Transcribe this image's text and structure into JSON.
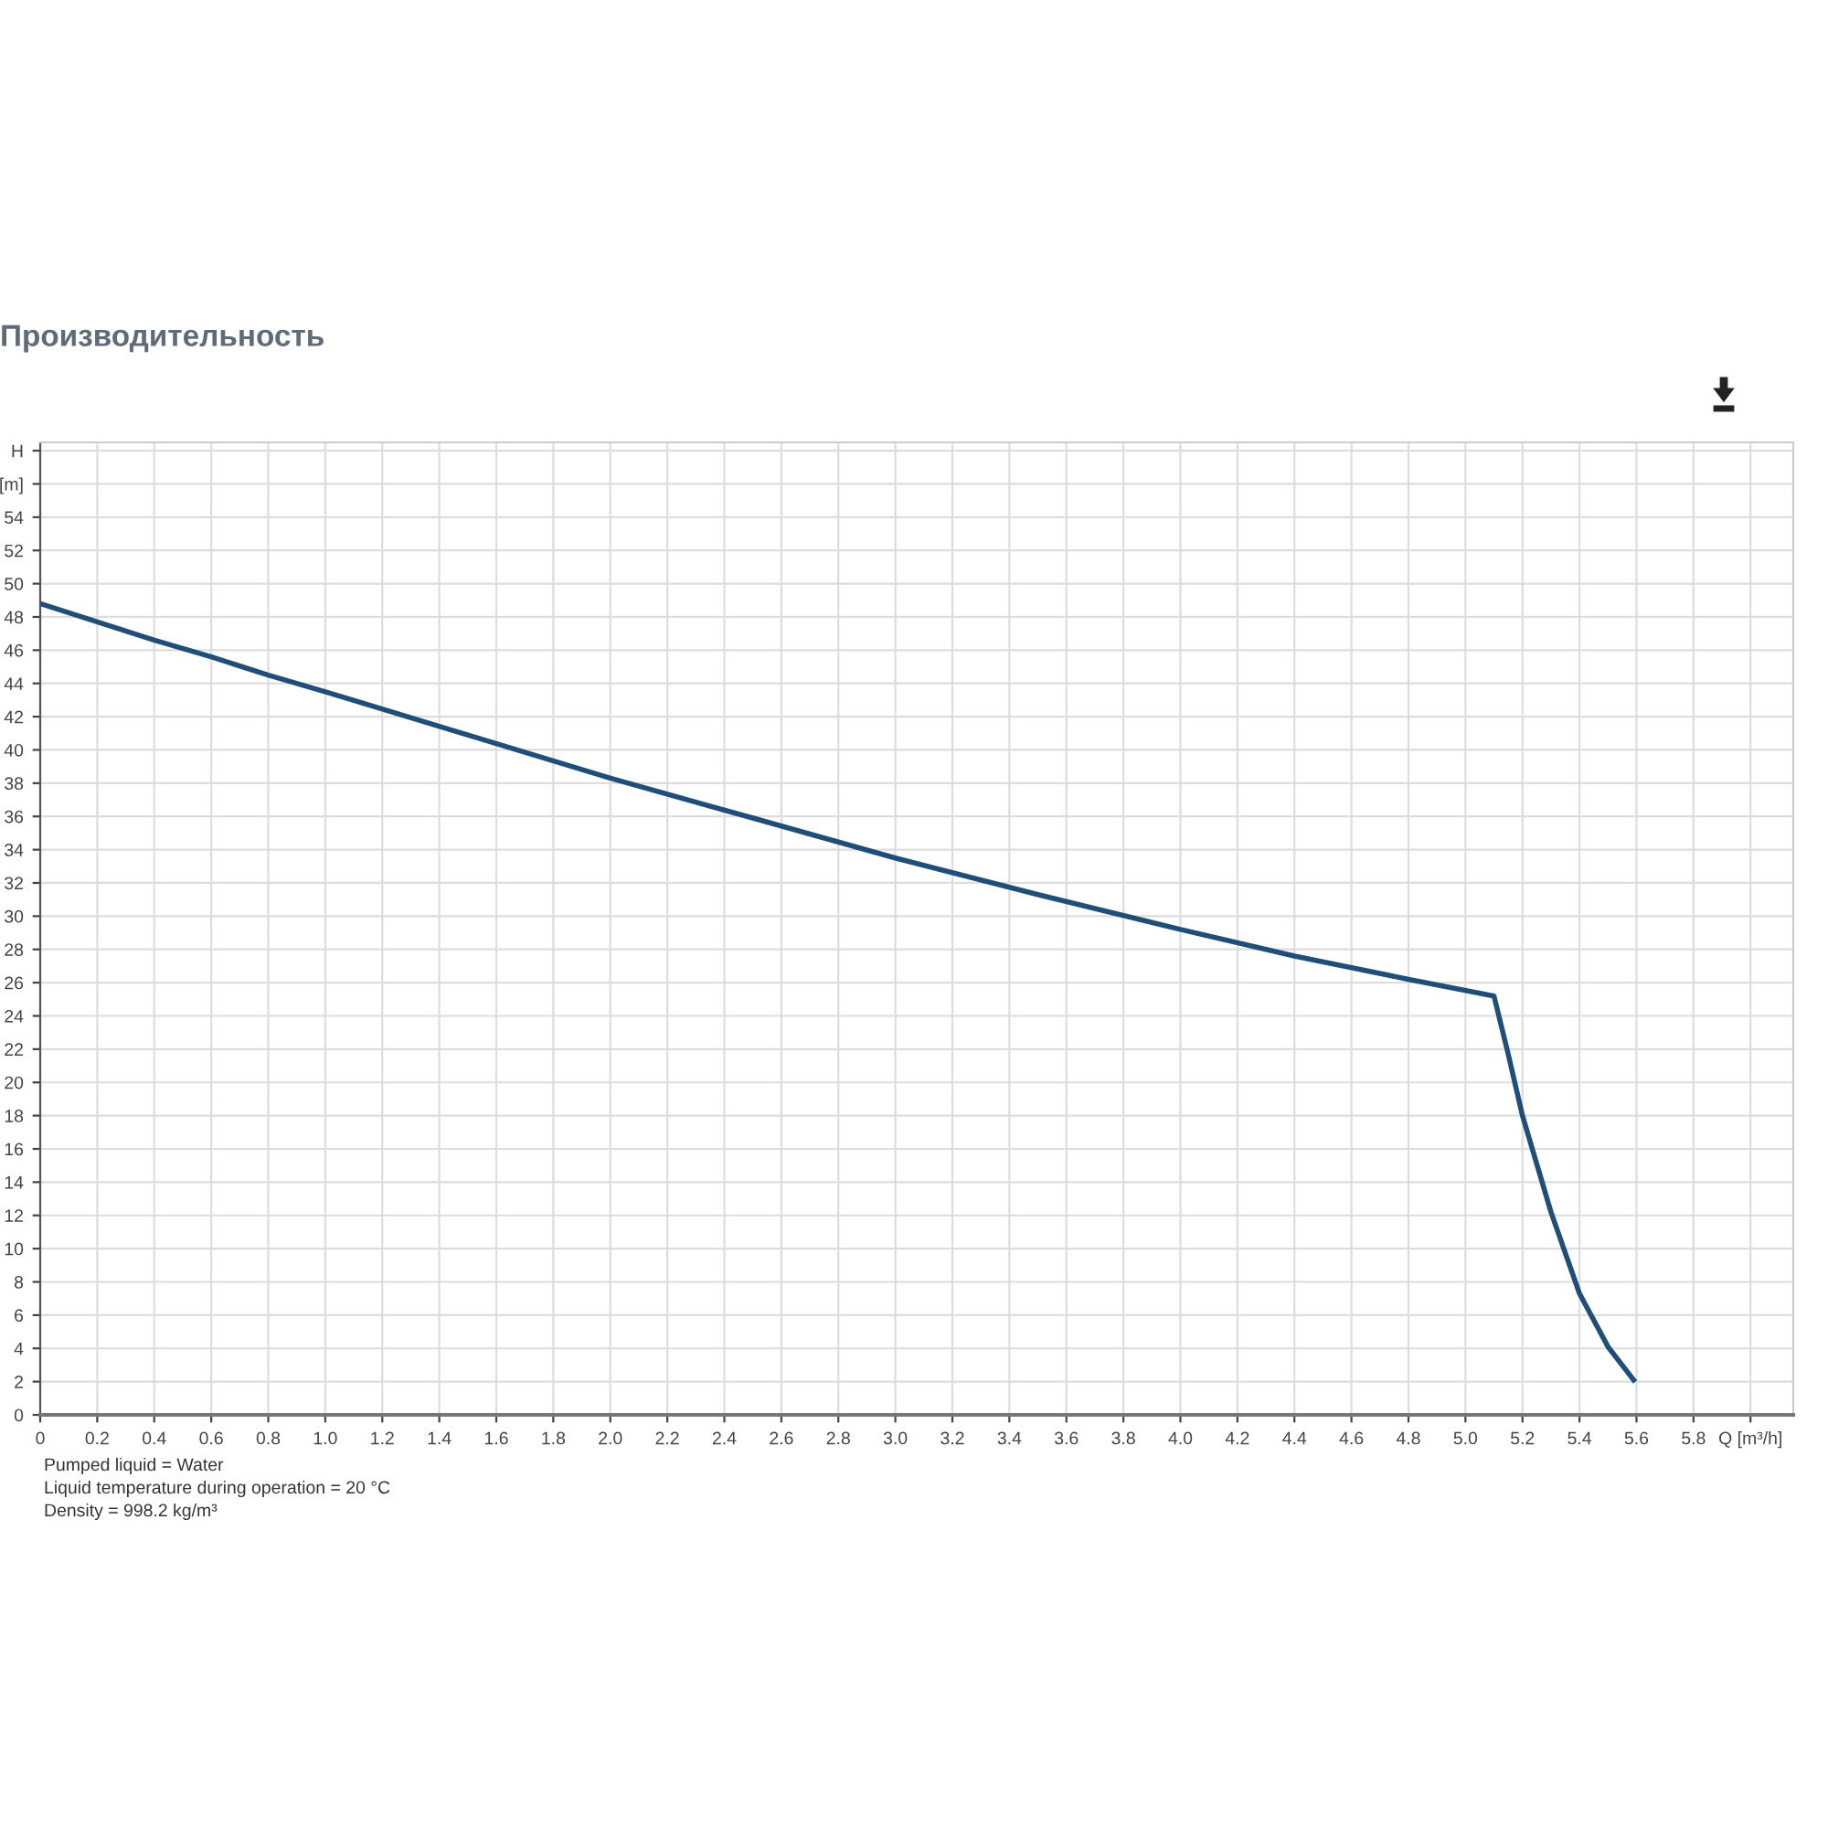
{
  "chart_data": {
    "type": "line",
    "title": "Производительность",
    "x": [
      0,
      0.2,
      0.4,
      0.6,
      0.8,
      1.0,
      1.5,
      2.0,
      2.5,
      3.0,
      3.5,
      4.0,
      4.4,
      4.8,
      5.1,
      5.15,
      5.2,
      5.3,
      5.4,
      5.5,
      5.59
    ],
    "series": [
      {
        "color": "#1f4e79",
        "values": [
          48.8,
          47.7,
          46.6,
          45.6,
          44.5,
          43.5,
          40.9,
          38.3,
          35.9,
          33.5,
          31.3,
          29.2,
          27.6,
          26.2,
          25.2,
          21.7,
          18.0,
          12.2,
          7.3,
          4.1,
          2.1
        ]
      }
    ],
    "xlim": [
      0,
      6.15
    ],
    "xticks": [
      0,
      0.2,
      0.4,
      0.6,
      0.8,
      {
        "value": 1.0,
        "label": "1.0"
      },
      1.2,
      1.4,
      1.6,
      1.8,
      {
        "value": 2.0,
        "label": "2.0"
      },
      2.2,
      2.4,
      2.6,
      2.8,
      {
        "value": 3.0,
        "label": "3.0"
      },
      3.2,
      3.4,
      3.6,
      3.8,
      {
        "value": 4.0,
        "label": "4.0"
      },
      4.2,
      4.4,
      4.6,
      4.8,
      {
        "value": 5.0,
        "label": "5.0"
      },
      5.2,
      5.4,
      5.6,
      5.8,
      {
        "value": 6.0,
        "label": "Q [m³/h]"
      }
    ],
    "ylim": [
      0,
      58.5
    ],
    "yticks": [
      0,
      2,
      4,
      6,
      8,
      10,
      12,
      14,
      16,
      18,
      20,
      22,
      24,
      26,
      28,
      30,
      32,
      34,
      36,
      38,
      40,
      42,
      44,
      46,
      48,
      50,
      52,
      54,
      {
        "value": 56,
        "label": "[m]"
      },
      {
        "value": 58,
        "label": "H"
      }
    ],
    "grid": true,
    "marker": "none",
    "line_style": "solid",
    "annotations": [
      "Pumped liquid = Water",
      "Liquid temperature during operation = 20 °C",
      "Density = 998.2 kg/m³"
    ]
  }
}
